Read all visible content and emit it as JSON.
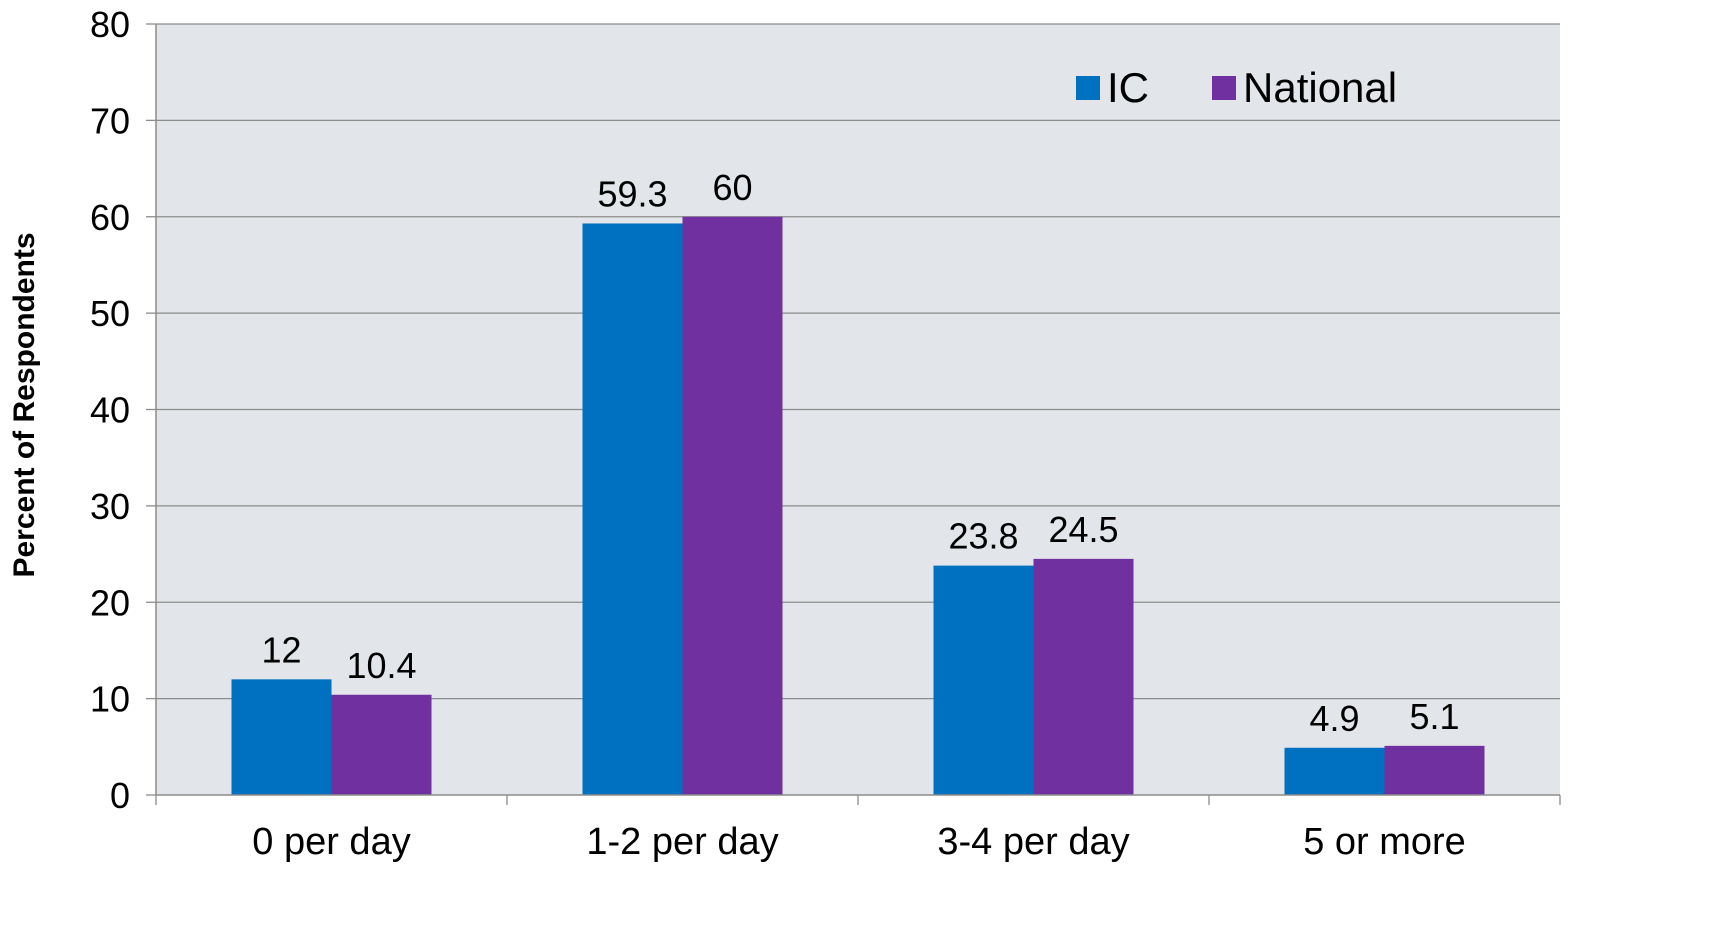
{
  "chart_data": {
    "type": "bar",
    "title": "",
    "xlabel": "",
    "ylabel": "Percent of Respondents",
    "ylim": [
      0,
      80
    ],
    "yticks": [
      0,
      10,
      20,
      30,
      40,
      50,
      60,
      70,
      80
    ],
    "grid": true,
    "legend_position": "top-right",
    "categories": [
      "0 per day",
      "1-2 per day",
      "3-4 per day",
      "5 or more"
    ],
    "series": [
      {
        "name": "IC",
        "color": "#0070C0",
        "values": [
          12,
          59.3,
          23.8,
          4.9
        ],
        "labels": [
          "12",
          "59.3",
          "23.8",
          "4.9"
        ]
      },
      {
        "name": "National",
        "color": "#7030A0",
        "values": [
          10.4,
          60,
          24.5,
          5.1
        ],
        "labels": [
          "10.4",
          "60",
          "24.5",
          "5.1"
        ]
      }
    ],
    "plot_background": "#E2E5E9"
  }
}
